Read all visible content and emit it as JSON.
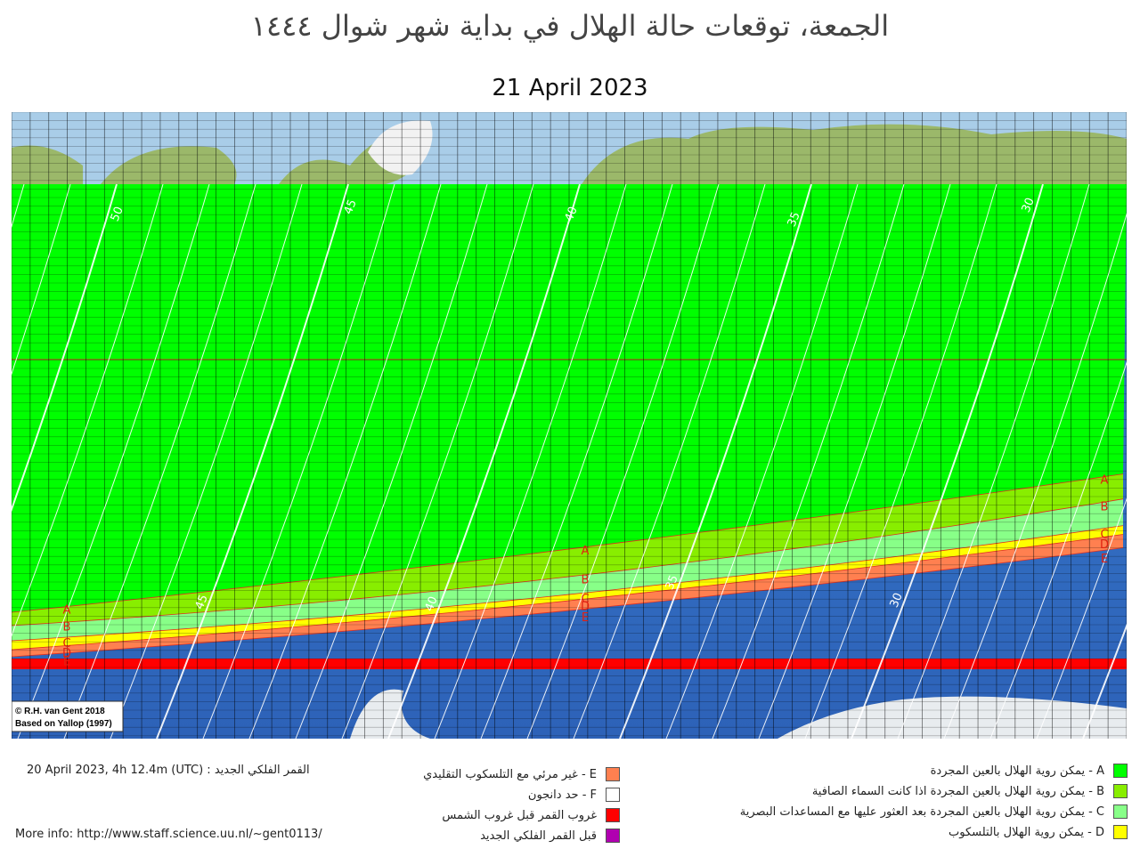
{
  "title": "الجمعة، توقعات حالة الهلال في بداية شهر شوال ١٤٤٤",
  "subtitle": "21 April 2023",
  "credit": [
    "© R.H. van Gent 2018",
    "Based on Yallop (1997)"
  ],
  "contour_labels": [
    50,
    45,
    40,
    35,
    30
  ],
  "zone_labels": [
    "A",
    "B",
    "C",
    "D",
    "E"
  ],
  "legend": [
    {
      "label": "A - يمكن روية الهلال بالعين المجردة",
      "color": "#00ff00"
    },
    {
      "label": "B - يمكن روية الهلال بالعين المجردة اذا كانت السماء الصافية",
      "color": "#88ee00"
    },
    {
      "label": "C - يمكن روية الهلال بالعين المجردة بعد العثور عليها مع المساعدات البصرية",
      "color": "#88ff88"
    },
    {
      "label": "D - يمكن روية الهلال بالتلسكوب",
      "color": "#ffff00"
    },
    {
      "label": "E - غير مرئي مع التلسكوب التقليدي",
      "color": "#ff8050"
    },
    {
      "label": "F - حد دانجون",
      "color": "#ffffff"
    },
    {
      "label": "غروب القمر قبل غروب الشمس",
      "color": "#ff0000"
    },
    {
      "label": "قبل القمر  الفلكي الجديد",
      "color": "#b000b0"
    }
  ],
  "conjunction": "20 April 2023, 4h 12.4m (UTC) : القمر الفلكي الجديد",
  "more_info": "More info: http://www.staff.science.uu.nl/~gent0113/"
}
